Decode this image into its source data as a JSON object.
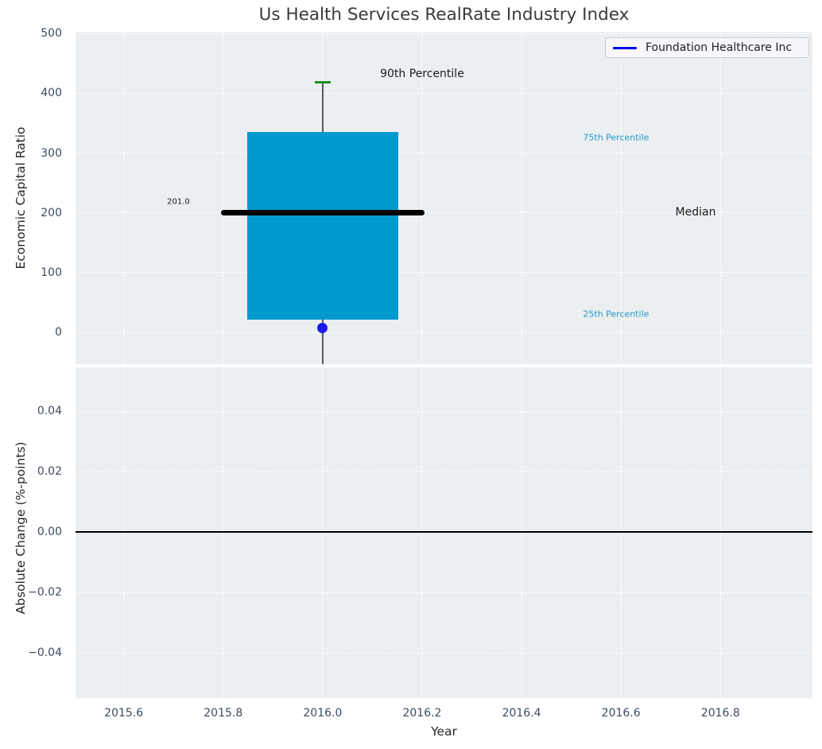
{
  "title": "Us Health Services RealRate Industry Index",
  "legend": {
    "label": "Foundation Healthcare Inc"
  },
  "chart_data": {
    "type": "box",
    "title": "Us Health Services RealRate Industry Index",
    "xlabel": "Year",
    "x_center": 2016.0,
    "xlim": [
      2015.503,
      2016.985
    ],
    "xticks": [
      {
        "value": 2015.6,
        "label": "2015.6"
      },
      {
        "value": 2015.8,
        "label": "2015.8"
      },
      {
        "value": 2016.0,
        "label": "2016.0"
      },
      {
        "value": 2016.2,
        "label": "2016.2"
      },
      {
        "value": 2016.4,
        "label": "2016.4"
      },
      {
        "value": 2016.6,
        "label": "2016.6"
      },
      {
        "value": 2016.8,
        "label": "2016.8"
      }
    ],
    "panels": {
      "top": {
        "ylabel": "Economic Capital Ratio",
        "ylim": [
          -53,
          503
        ],
        "yticks": [
          {
            "value": 0,
            "label": "0"
          },
          {
            "value": 100,
            "label": "100"
          },
          {
            "value": 200,
            "label": "200"
          },
          {
            "value": 300,
            "label": "300"
          },
          {
            "value": 400,
            "label": "400"
          },
          {
            "value": 500,
            "label": "500"
          }
        ],
        "box": {
          "x": 2016.0,
          "q1": 22,
          "median": 201,
          "q3": 335,
          "p90": 419,
          "median_label": "201.0",
          "whisker_clipped_at_axis_bottom": true
        },
        "company_point": {
          "series": "Foundation Healthcare Inc",
          "x": 2016.0,
          "value": 8
        },
        "annotations": [
          {
            "text": "90th Percentile",
            "x": 2016.2,
            "y": 433,
            "color": "#1a1a1a",
            "size": 14
          },
          {
            "text": "75th Percentile",
            "x": 2016.59,
            "y": 326,
            "color": "#1f9ac6",
            "size": 11
          },
          {
            "text": "Median",
            "x": 2016.75,
            "y": 201,
            "color": "#1a1a1a",
            "size": 14
          },
          {
            "text": "25th Percentile",
            "x": 2016.59,
            "y": 31,
            "color": "#1f9ac6",
            "size": 11
          },
          {
            "text": "201.0",
            "x": 2015.71,
            "y": 218,
            "color": "#1a1a1a",
            "size": 10
          }
        ]
      },
      "bottom": {
        "ylabel": "Absolute Change (%-points)",
        "ylim": [
          -0.055,
          0.0545
        ],
        "yticks": [
          {
            "value": -0.04,
            "label": "−0.04"
          },
          {
            "value": -0.02,
            "label": "−0.02"
          },
          {
            "value": 0.0,
            "label": "0.00"
          },
          {
            "value": 0.02,
            "label": "0.02"
          },
          {
            "value": 0.04,
            "label": "0.04"
          }
        ],
        "zero_line": 0.0
      }
    },
    "colors": {
      "plot_bg": "#eceff1",
      "grid": "#ffffff",
      "box_fill": "#0299ce",
      "median_line": "#000000",
      "whisker": "#55595e",
      "cap": "#1d8e1d",
      "point": "#1a1aef",
      "legend_line": "#0202f0",
      "zero_line": "#000000",
      "tick_color": "#3d4c60"
    }
  }
}
